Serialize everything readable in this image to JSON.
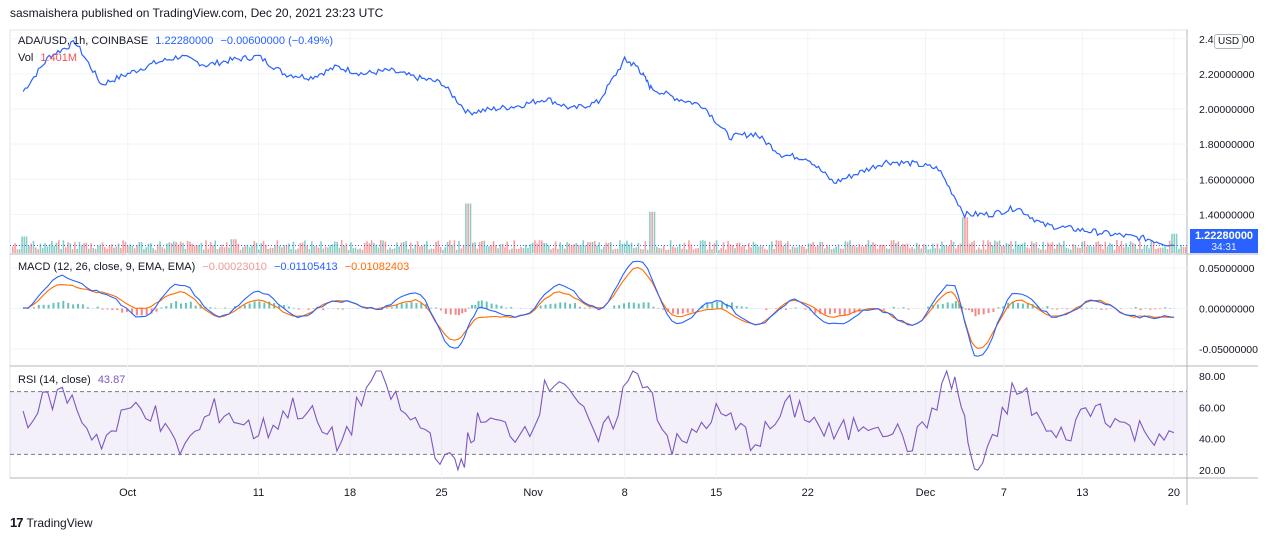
{
  "header": {
    "published": "sasmaishera published on TradingView.com, Dec 20, 2021 23:23 UTC"
  },
  "price_legend": {
    "symbol": "ADA/USD, 1h, COINBASE",
    "last": "1.22280000",
    "change": "−0.00600000 (−0.49%)"
  },
  "volume_legend": {
    "label": "Vol",
    "value": "1.401M"
  },
  "macd_legend": {
    "label": "MACD (12, 26, close, 9, EMA, EMA)",
    "hist": "−0.00023010",
    "macd": "−0.01105413",
    "signal": "−0.01082403"
  },
  "rsi_legend": {
    "label": "RSI (14, close)",
    "value": "43.87"
  },
  "currency_badge": "USD",
  "price_tag": {
    "value": "1.22280000",
    "timer": "34:31"
  },
  "footer": {
    "brand": "TradingView",
    "logo": "17"
  },
  "colors": {
    "price": "#2962ff",
    "up": "#26a69a",
    "down": "#ef5350",
    "macd": "#2962ff",
    "signal": "#ff6d00",
    "rsi": "#7e57c2"
  },
  "chart_data": [
    {
      "type": "line",
      "name": "price",
      "y_ticks": [
        "1.40000000",
        "1.60000000",
        "1.80000000",
        "2.00000000",
        "2.20000000",
        "2.40000000"
      ],
      "ylim": [
        1.18,
        2.45
      ],
      "x_labels": [
        "Oct",
        "11",
        "18",
        "25",
        "Nov",
        "8",
        "15",
        "22",
        "Dec",
        "7",
        "13",
        "20"
      ],
      "x_dates": [
        "2021-10-01",
        "2021-10-11",
        "2021-10-18",
        "2021-10-25",
        "2021-11-01",
        "2021-11-08",
        "2021-11-15",
        "2021-11-22",
        "2021-12-01",
        "2021-12-07",
        "2021-12-13",
        "2021-12-20"
      ],
      "x": [
        "2021-09-23",
        "2021-09-25",
        "2021-09-27",
        "2021-09-29",
        "2021-10-01",
        "2021-10-03",
        "2021-10-05",
        "2021-10-07",
        "2021-10-09",
        "2021-10-11",
        "2021-10-13",
        "2021-10-15",
        "2021-10-17",
        "2021-10-19",
        "2021-10-21",
        "2021-10-23",
        "2021-10-25",
        "2021-10-27",
        "2021-10-29",
        "2021-10-31",
        "2021-11-02",
        "2021-11-04",
        "2021-11-06",
        "2021-11-08",
        "2021-11-09",
        "2021-11-10",
        "2021-11-12",
        "2021-11-14",
        "2021-11-16",
        "2021-11-18",
        "2021-11-20",
        "2021-11-22",
        "2021-11-24",
        "2021-11-26",
        "2021-11-28",
        "2021-11-30",
        "2021-12-02",
        "2021-12-04",
        "2021-12-06",
        "2021-12-08",
        "2021-12-10",
        "2021-12-12",
        "2021-12-14",
        "2021-12-16",
        "2021-12-18",
        "2021-12-20"
      ],
      "values": [
        2.1,
        2.3,
        2.38,
        2.14,
        2.2,
        2.26,
        2.3,
        2.25,
        2.28,
        2.3,
        2.2,
        2.18,
        2.24,
        2.2,
        2.22,
        2.18,
        2.15,
        1.98,
        2.0,
        2.02,
        2.06,
        2.0,
        2.04,
        2.28,
        2.24,
        2.12,
        2.06,
        2.02,
        1.84,
        1.86,
        1.74,
        1.72,
        1.58,
        1.64,
        1.7,
        1.69,
        1.66,
        1.4,
        1.4,
        1.44,
        1.34,
        1.32,
        1.3,
        1.28,
        1.26,
        1.2228
      ]
    },
    {
      "type": "bar",
      "name": "volume",
      "x": [
        "2021-09-23",
        "2021-10-09",
        "2021-10-27",
        "2021-11-10",
        "2021-12-04",
        "2021-12-20"
      ],
      "values": [
        1.2,
        1.0,
        3.6,
        3.0,
        2.6,
        1.401
      ],
      "unit": "M"
    },
    {
      "type": "line",
      "name": "macd",
      "y_ticks": [
        "0.05000000",
        "0.00000000",
        "-0.05000000"
      ],
      "ylim": [
        -0.07,
        0.065
      ],
      "x": [
        "2021-09-23",
        "2021-09-26",
        "2021-09-29",
        "2021-10-02",
        "2021-10-05",
        "2021-10-08",
        "2021-10-11",
        "2021-10-14",
        "2021-10-17",
        "2021-10-20",
        "2021-10-23",
        "2021-10-26",
        "2021-10-28",
        "2021-10-31",
        "2021-11-03",
        "2021-11-06",
        "2021-11-09",
        "2021-11-12",
        "2021-11-15",
        "2021-11-18",
        "2021-11-21",
        "2021-11-24",
        "2021-11-27",
        "2021-11-30",
        "2021-12-03",
        "2021-12-05",
        "2021-12-08",
        "2021-12-11",
        "2021-12-14",
        "2021-12-17",
        "2021-12-20"
      ],
      "macd_values": [
        0.0,
        0.04,
        0.02,
        -0.01,
        0.03,
        -0.01,
        0.02,
        -0.01,
        0.01,
        0.0,
        0.02,
        -0.05,
        0.0,
        -0.01,
        0.03,
        0.0,
        0.06,
        -0.02,
        0.01,
        -0.02,
        0.01,
        -0.02,
        0.0,
        -0.02,
        0.03,
        -0.06,
        0.02,
        -0.01,
        0.01,
        -0.01,
        -0.011
      ],
      "signal_values": [
        0.0,
        0.03,
        0.02,
        0.0,
        0.02,
        -0.01,
        0.01,
        -0.01,
        0.01,
        0.0,
        0.01,
        -0.04,
        -0.01,
        -0.01,
        0.02,
        0.0,
        0.05,
        -0.01,
        0.0,
        -0.02,
        0.01,
        -0.01,
        0.0,
        -0.02,
        0.02,
        -0.05,
        0.01,
        -0.01,
        0.01,
        -0.01,
        -0.0108
      ]
    },
    {
      "type": "line",
      "name": "rsi",
      "y_ticks": [
        "20.00",
        "40.00",
        "60.00",
        "80.00"
      ],
      "ylim": [
        15,
        85
      ],
      "bands": [
        30,
        70
      ],
      "x": [
        "2021-09-23",
        "2021-09-26",
        "2021-09-29",
        "2021-10-02",
        "2021-10-05",
        "2021-10-08",
        "2021-10-11",
        "2021-10-14",
        "2021-10-17",
        "2021-10-20",
        "2021-10-23",
        "2021-10-26",
        "2021-10-28",
        "2021-10-31",
        "2021-11-03",
        "2021-11-06",
        "2021-11-09",
        "2021-11-12",
        "2021-11-15",
        "2021-11-18",
        "2021-11-21",
        "2021-11-24",
        "2021-11-27",
        "2021-11-30",
        "2021-12-03",
        "2021-12-05",
        "2021-12-08",
        "2021-12-11",
        "2021-12-14",
        "2021-12-17",
        "2021-12-20"
      ],
      "values": [
        55,
        68,
        40,
        62,
        35,
        58,
        45,
        60,
        38,
        78,
        50,
        22,
        50,
        45,
        80,
        40,
        82,
        35,
        55,
        40,
        60,
        42,
        52,
        38,
        78,
        20,
        70,
        40,
        60,
        45,
        43.87
      ]
    }
  ]
}
